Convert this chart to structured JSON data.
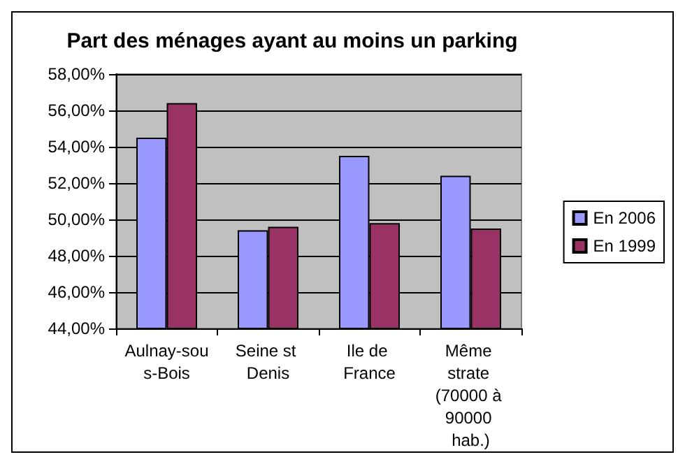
{
  "chart_data": {
    "type": "bar",
    "title": "Part des ménages ayant au moins un parking",
    "categories": [
      "Aulnay-sous-Bois",
      "Seine st Denis",
      "Ile de France",
      "Même strate (70000 à 90000 hab.)"
    ],
    "series": [
      {
        "name": "En 2006",
        "color": "#9999ff",
        "values": [
          54.5,
          49.4,
          53.5,
          52.4
        ]
      },
      {
        "name": "En 1999",
        "color": "#993366",
        "values": [
          56.4,
          49.6,
          49.8,
          49.5
        ]
      }
    ],
    "ylim": [
      44,
      58
    ],
    "yticks": [
      {
        "value": 44,
        "label": "44,00%"
      },
      {
        "value": 46,
        "label": "46,00%"
      },
      {
        "value": 48,
        "label": "48,00%"
      },
      {
        "value": 50,
        "label": "50,00%"
      },
      {
        "value": 52,
        "label": "52,00%"
      },
      {
        "value": 54,
        "label": "54,00%"
      },
      {
        "value": 56,
        "label": "56,00%"
      },
      {
        "value": 58,
        "label": "58,00%"
      }
    ],
    "grid": "y",
    "legend": "right"
  }
}
